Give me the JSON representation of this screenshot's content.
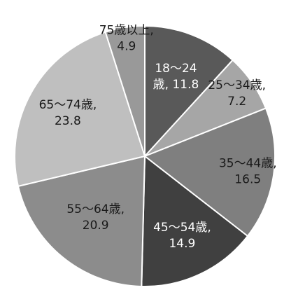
{
  "chart_data": {
    "type": "pie",
    "title": "",
    "start_angle_deg": 0,
    "direction": "clockwise",
    "legend": "none",
    "slices": [
      {
        "category": "18〜24歳",
        "value": 11.8,
        "label_lines": [
          "18〜24",
          "歳, 11.8"
        ],
        "color": "#595959",
        "label_color": "#ffffff"
      },
      {
        "category": "25〜34歳",
        "value": 7.2,
        "label_lines": [
          "25〜34歳,",
          "7.2"
        ],
        "color": "#a6a6a6",
        "label_color": "#1a1a1a"
      },
      {
        "category": "35〜44歳",
        "value": 16.5,
        "label_lines": [
          "35〜44歳,",
          "16.5"
        ],
        "color": "#7f7f7f",
        "label_color": "#1a1a1a"
      },
      {
        "category": "45〜54歳",
        "value": 14.9,
        "label_lines": [
          "45〜54歳,",
          "14.9"
        ],
        "color": "#404040",
        "label_color": "#ffffff"
      },
      {
        "category": "55〜64歳",
        "value": 20.9,
        "label_lines": [
          "55〜64歳,",
          "20.9"
        ],
        "color": "#8c8c8c",
        "label_color": "#1a1a1a"
      },
      {
        "category": "65〜74歳",
        "value": 23.8,
        "label_lines": [
          "65〜74歳,",
          "23.8"
        ],
        "color": "#bfbfbf",
        "label_color": "#1a1a1a"
      },
      {
        "category": "75歳以上",
        "value": 4.9,
        "label_lines": [
          "75歳以上,",
          "4.9"
        ],
        "color": "#999999",
        "label_color": "#1a1a1a"
      }
    ]
  }
}
